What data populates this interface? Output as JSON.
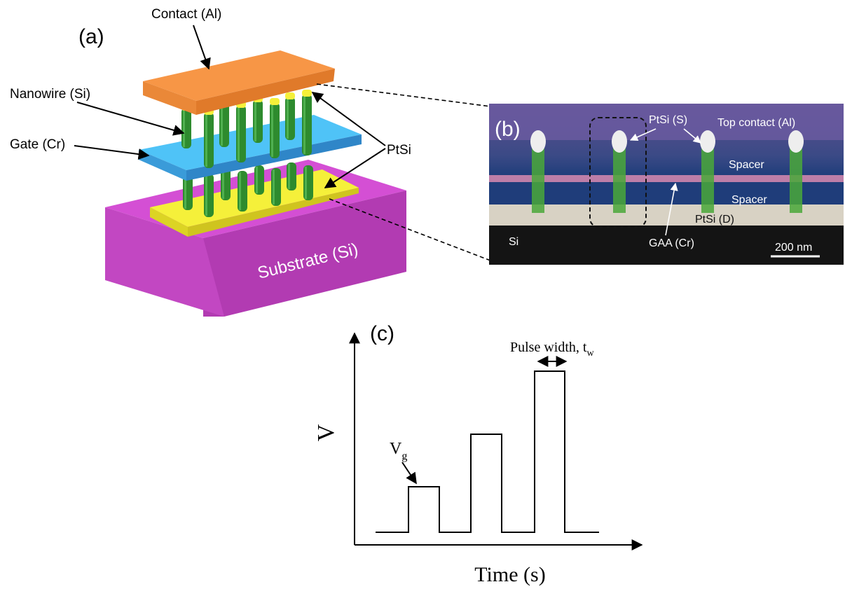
{
  "panel_a": {
    "label": "(a)",
    "contact_label": "Contact (Al)",
    "nanowire_label": "Nanowire (Si)",
    "gate_label": "Gate (Cr)",
    "ptsi_label": "PtSi",
    "substrate_label": "Substrate (Si)"
  },
  "panel_b": {
    "label": "(b)",
    "ptsi_s_label": "PtSi (S)",
    "top_contact_label": "Top contact (Al)",
    "spacer_label": "Spacer",
    "ptsi_d_label": "PtSi (D)",
    "gaa_label": "GAA (Cr)",
    "si_label": "Si",
    "scale_label": "200 nm"
  },
  "panel_c": {
    "label": "(c)",
    "y_label": "V",
    "x_label": "Time (s)",
    "pulse_width_label": "Pulse width, t",
    "pulse_width_sub": "w",
    "vg_label": "V",
    "vg_sub": "g"
  },
  "colors": {
    "contact": "#f79646",
    "gate": "#3fa9e0",
    "nanowire": "#2e8b2e",
    "ptsi": "#f5f03a",
    "substrate": "#c84fc8",
    "tem_top": "#6b5a9c",
    "tem_spacer": "#1f3f7a",
    "tem_gaa": "#d98ab0",
    "tem_si": "#1a1a1a"
  }
}
